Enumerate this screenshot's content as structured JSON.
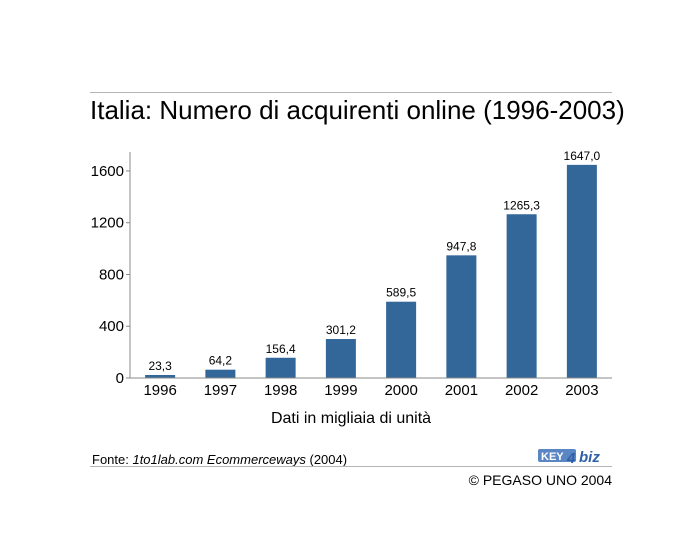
{
  "chart_data": {
    "type": "bar",
    "title": "Italia: Numero di acquirenti online (1996-2003)",
    "categories": [
      "1996",
      "1997",
      "1998",
      "1999",
      "2000",
      "2001",
      "2002",
      "2003"
    ],
    "values": [
      23.3,
      64.2,
      156.4,
      301.2,
      589.5,
      947.8,
      1265.3,
      1647.0
    ],
    "data_labels": [
      "23,3",
      "64,2",
      "156,4",
      "301,2",
      "589,5",
      "947,8",
      "1265,3",
      "1647,0"
    ],
    "xlabel": "Dati in migliaia di unità",
    "ylabel": "",
    "ylim": [
      0,
      1700
    ],
    "yticks": [
      0,
      400,
      800,
      1200,
      1600
    ],
    "bar_color": "#336699",
    "grid": false,
    "legend": "none"
  },
  "footer": {
    "source_prefix": "Fonte: ",
    "source_work": "1to1lab.com Ecommerceways",
    "source_suffix": " (2004)",
    "copyright": "© PEGASO UNO 2004",
    "logo_text": "KEY4biz"
  }
}
